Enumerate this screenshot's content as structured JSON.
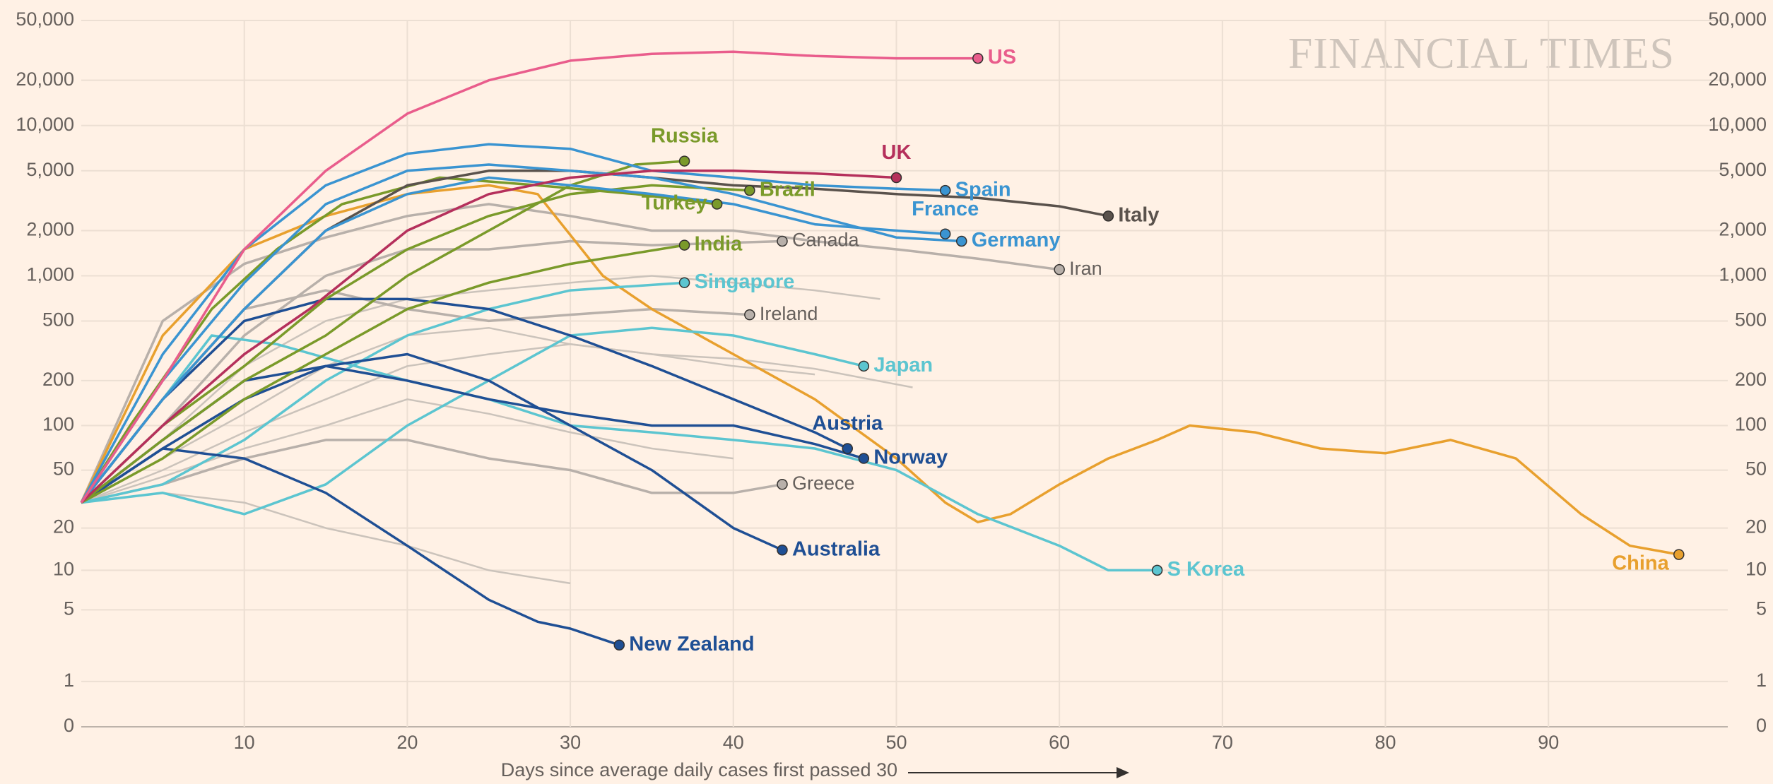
{
  "chart_data": {
    "type": "line",
    "annotation": "FINANCIAL TIMES",
    "x_label": "Days since average daily cases first passed 30",
    "xlim": [
      0,
      101
    ],
    "xticks": [
      10,
      20,
      30,
      40,
      50,
      60,
      70,
      80,
      90
    ],
    "ylim": [
      0,
      50000
    ],
    "yscale": "log1p",
    "yticks": [
      0,
      1,
      5,
      10,
      20,
      50,
      100,
      200,
      500,
      {
        "value": 1000,
        "label": "1,000"
      },
      {
        "value": 2000,
        "label": "2,000"
      },
      {
        "value": 5000,
        "label": "5,000"
      },
      {
        "value": 10000,
        "label": "10,000"
      },
      {
        "value": 20000,
        "label": "20,000"
      },
      {
        "value": 50000,
        "label": "50,000"
      }
    ],
    "grid": true,
    "series": [
      {
        "color": "#cbc3bb",
        "x": [
          0,
          5,
          10,
          15,
          20,
          25,
          30,
          35,
          40,
          45
        ],
        "values": [
          30,
          60,
          120,
          250,
          400,
          450,
          350,
          300,
          250,
          220
        ]
      },
      {
        "color": "#cbc3bb",
        "x": [
          0,
          5,
          10,
          15,
          20,
          25,
          30,
          35,
          40
        ],
        "values": [
          30,
          45,
          70,
          100,
          150,
          120,
          90,
          70,
          60
        ]
      },
      {
        "color": "#cbc3bb",
        "x": [
          0,
          5,
          10,
          15,
          20,
          25,
          30
        ],
        "values": [
          30,
          35,
          30,
          20,
          15,
          10,
          8
        ]
      },
      {
        "color": "#cbc3bb",
        "x": [
          0,
          5,
          10,
          15,
          20,
          25,
          30,
          35,
          40,
          45,
          49
        ],
        "values": [
          30,
          80,
          250,
          500,
          700,
          800,
          900,
          1000,
          900,
          800,
          700
        ]
      },
      {
        "color": "#cbc3bb",
        "x": [
          0,
          5,
          10,
          15,
          20,
          25,
          30,
          35,
          40,
          45,
          51
        ],
        "values": [
          30,
          50,
          90,
          150,
          250,
          300,
          350,
          300,
          280,
          240,
          180
        ]
      },
      {
        "name": "Iran",
        "color": "#b8b0aa",
        "x": [
          0,
          5,
          10,
          15,
          20,
          25,
          30,
          35,
          40,
          45,
          50,
          55,
          60
        ],
        "values": [
          30,
          500,
          1200,
          1800,
          2500,
          3000,
          2500,
          2000,
          2000,
          1700,
          1500,
          1300,
          1100
        ]
      },
      {
        "name": "Canada",
        "color": "#b8b0aa",
        "x": [
          0,
          5,
          10,
          15,
          20,
          25,
          30,
          35,
          43
        ],
        "values": [
          30,
          100,
          400,
          1000,
          1500,
          1500,
          1700,
          1600,
          1700
        ]
      },
      {
        "name": "Ireland",
        "color": "#b8b0aa",
        "x": [
          0,
          5,
          10,
          15,
          20,
          25,
          30,
          35,
          41
        ],
        "values": [
          30,
          150,
          600,
          800,
          600,
          500,
          550,
          600,
          550
        ]
      },
      {
        "name": "Greece",
        "color": "#b8b0aa",
        "x": [
          0,
          5,
          10,
          15,
          20,
          25,
          30,
          35,
          40,
          43
        ],
        "values": [
          30,
          40,
          60,
          80,
          80,
          60,
          50,
          35,
          35,
          40
        ]
      },
      {
        "name": "China",
        "color": "#e8a02e",
        "x": [
          0,
          5,
          10,
          15,
          20,
          25,
          28,
          32,
          35,
          40,
          45,
          50,
          53,
          55,
          57,
          60,
          63,
          66,
          68,
          72,
          76,
          80,
          84,
          88,
          92,
          95,
          98
        ],
        "values": [
          30,
          400,
          1500,
          2500,
          3500,
          4000,
          3500,
          1000,
          600,
          300,
          150,
          60,
          30,
          22,
          25,
          40,
          60,
          80,
          100,
          90,
          70,
          65,
          80,
          60,
          25,
          15,
          13
        ]
      },
      {
        "name": "S Korea",
        "color": "#5cc5d0",
        "x": [
          0,
          5,
          8,
          12,
          20,
          25,
          30,
          35,
          40,
          45,
          50,
          55,
          60,
          63,
          66
        ],
        "values": [
          30,
          150,
          400,
          350,
          200,
          150,
          100,
          90,
          80,
          70,
          50,
          25,
          15,
          10,
          10
        ]
      },
      {
        "name": "Japan",
        "color": "#5cc5d0",
        "x": [
          0,
          5,
          10,
          15,
          20,
          25,
          30,
          35,
          40,
          45,
          48
        ],
        "values": [
          30,
          35,
          25,
          40,
          100,
          200,
          400,
          450,
          400,
          300,
          250
        ]
      },
      {
        "name": "Singapore",
        "color": "#5cc5d0",
        "x": [
          0,
          5,
          10,
          15,
          20,
          25,
          30,
          37
        ],
        "values": [
          30,
          40,
          80,
          200,
          400,
          600,
          800,
          900
        ]
      },
      {
        "name": "New Zealand",
        "color": "#1f4f94",
        "x": [
          0,
          5,
          10,
          15,
          20,
          25,
          28,
          30,
          33
        ],
        "values": [
          30,
          70,
          60,
          35,
          15,
          6,
          4,
          3.5,
          2.5
        ]
      },
      {
        "name": "Australia",
        "color": "#1f4f94",
        "x": [
          0,
          5,
          10,
          15,
          20,
          25,
          30,
          35,
          40,
          43
        ],
        "values": [
          30,
          70,
          150,
          250,
          300,
          200,
          100,
          50,
          20,
          14
        ]
      },
      {
        "name": "Norway",
        "color": "#1f4f94",
        "x": [
          0,
          5,
          10,
          15,
          20,
          25,
          30,
          35,
          40,
          45,
          48
        ],
        "values": [
          30,
          80,
          200,
          250,
          200,
          150,
          120,
          100,
          100,
          75,
          60
        ]
      },
      {
        "name": "Austria",
        "color": "#1f4f94",
        "x": [
          0,
          5,
          10,
          15,
          20,
          25,
          30,
          35,
          40,
          45,
          47
        ],
        "values": [
          30,
          150,
          500,
          700,
          700,
          600,
          400,
          250,
          150,
          90,
          70
        ]
      },
      {
        "name": "India",
        "color": "#7a9a2a",
        "x": [
          0,
          5,
          10,
          15,
          20,
          25,
          30,
          37
        ],
        "values": [
          30,
          60,
          150,
          300,
          600,
          900,
          1200,
          1600
        ]
      },
      {
        "name": "Turkey",
        "color": "#7a9a2a",
        "x": [
          0,
          3,
          8,
          12,
          16,
          22,
          28,
          34,
          39
        ],
        "values": [
          30,
          100,
          600,
          1500,
          3000,
          4500,
          4000,
          3500,
          3000
        ]
      },
      {
        "name": "Brazil",
        "color": "#7a9a2a",
        "x": [
          0,
          5,
          10,
          15,
          20,
          25,
          30,
          35,
          41
        ],
        "values": [
          30,
          100,
          250,
          700,
          1500,
          2500,
          3500,
          4000,
          3700
        ]
      },
      {
        "name": "Russia",
        "color": "#7a9a2a",
        "x": [
          0,
          5,
          10,
          15,
          20,
          25,
          30,
          34,
          37
        ],
        "values": [
          30,
          80,
          200,
          400,
          1000,
          2000,
          4000,
          5500,
          5800
        ]
      },
      {
        "name": "Italy",
        "color": "#5a524c",
        "x": [
          0,
          5,
          10,
          15,
          20,
          25,
          30,
          35,
          40,
          45,
          50,
          55,
          60,
          63
        ],
        "values": [
          30,
          150,
          600,
          2000,
          4000,
          5000,
          5000,
          4500,
          4000,
          3800,
          3500,
          3300,
          2900,
          2500
        ]
      },
      {
        "name": "France",
        "color": "#3a94d1",
        "x": [
          0,
          5,
          10,
          15,
          20,
          25,
          30,
          35,
          40,
          45,
          50,
          53
        ],
        "values": [
          30,
          150,
          600,
          2000,
          3500,
          4500,
          4000,
          3500,
          3000,
          2200,
          2000,
          1900
        ]
      },
      {
        "name": "Germany",
        "color": "#3a94d1",
        "x": [
          0,
          5,
          10,
          15,
          20,
          25,
          30,
          35,
          40,
          45,
          50,
          54
        ],
        "values": [
          30,
          200,
          900,
          3000,
          5000,
          5500,
          5000,
          4500,
          3500,
          2500,
          1800,
          1700
        ]
      },
      {
        "name": "Spain",
        "color": "#3a94d1",
        "x": [
          0,
          5,
          10,
          15,
          20,
          25,
          30,
          35,
          40,
          45,
          50,
          53
        ],
        "values": [
          30,
          300,
          1500,
          4000,
          6500,
          7500,
          7000,
          5000,
          4500,
          4000,
          3800,
          3700
        ]
      },
      {
        "name": "UK",
        "color": "#b5305c",
        "x": [
          0,
          5,
          10,
          14,
          20,
          25,
          30,
          35,
          40,
          45,
          50
        ],
        "values": [
          30,
          100,
          300,
          600,
          2000,
          3500,
          4500,
          5000,
          5000,
          4800,
          4500
        ]
      },
      {
        "name": "US",
        "color": "#e95d8c",
        "x": [
          0,
          5,
          10,
          15,
          20,
          25,
          30,
          35,
          40,
          45,
          50,
          55
        ],
        "values": [
          30,
          200,
          1500,
          5000,
          12000,
          20000,
          27000,
          30000,
          31000,
          29000,
          28000,
          28000
        ]
      }
    ]
  }
}
